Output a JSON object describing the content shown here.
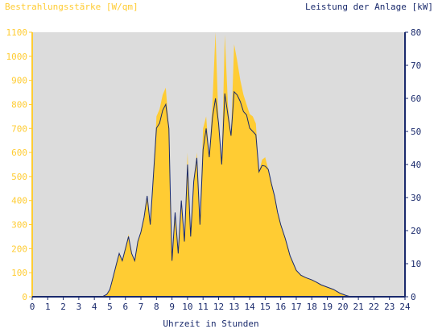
{
  "chart_data": {
    "type": "area",
    "left_axis_title": "Bestrahlungsstärke [W/qm]",
    "right_axis_title": "Leistung der Anlage [kW]",
    "xlabel": "Uhrzeit in Stunden",
    "xlim": [
      0,
      24
    ],
    "y_left_lim": [
      0,
      1100
    ],
    "y_right_lim": [
      0,
      80
    ],
    "x_ticks": [
      "0",
      "1",
      "2",
      "3",
      "4",
      "5",
      "6",
      "7",
      "8",
      "9",
      "10",
      "11",
      "12",
      "13",
      "14",
      "15",
      "16",
      "17",
      "18",
      "19",
      "20",
      "21",
      "22",
      "23",
      "24"
    ],
    "y_left_ticks": [
      "0",
      "100",
      "200",
      "300",
      "400",
      "500",
      "600",
      "700",
      "800",
      "900",
      "1000",
      "1100"
    ],
    "y_right_ticks": [
      "0",
      "10",
      "20",
      "30",
      "40",
      "50",
      "60",
      "70",
      "80"
    ],
    "grid": false,
    "colors": {
      "plot_bg": "#dcdcdc",
      "irradiance": "#ffcc33",
      "power": "#1a2a6c",
      "left_axis": "#ffcc33",
      "right_axis": "#1a2a6c"
    },
    "series": [
      {
        "axis": "left",
        "kind": "area",
        "x": [
          0,
          4.5,
          4.8,
          5.0,
          5.2,
          5.4,
          5.6,
          5.8,
          6.0,
          6.2,
          6.4,
          6.6,
          6.8,
          7.0,
          7.2,
          7.4,
          7.6,
          7.8,
          8.0,
          8.2,
          8.4,
          8.6,
          8.8,
          8.9,
          9.0,
          9.2,
          9.4,
          9.6,
          9.8,
          10.0,
          10.2,
          10.4,
          10.6,
          10.8,
          11.0,
          11.2,
          11.4,
          11.6,
          11.8,
          12.0,
          12.2,
          12.4,
          12.6,
          12.8,
          13.0,
          13.2,
          13.4,
          13.6,
          13.8,
          14.0,
          14.2,
          14.4,
          14.6,
          14.8,
          15.0,
          15.2,
          15.4,
          15.6,
          15.8,
          16.0,
          16.3,
          16.6,
          17.0,
          17.3,
          17.6,
          18.0,
          18.3,
          18.6,
          19.0,
          19.4,
          19.8,
          20.2,
          20.5,
          21.0,
          24
        ],
        "values": [
          0,
          0,
          10,
          30,
          80,
          130,
          180,
          150,
          200,
          260,
          180,
          150,
          230,
          270,
          330,
          420,
          300,
          500,
          750,
          780,
          840,
          870,
          700,
          400,
          150,
          350,
          180,
          400,
          230,
          600,
          250,
          480,
          600,
          300,
          700,
          750,
          580,
          800,
          1100,
          720,
          550,
          1090,
          800,
          670,
          1050,
          980,
          900,
          840,
          800,
          760,
          750,
          720,
          520,
          570,
          580,
          530,
          470,
          420,
          350,
          300,
          240,
          170,
          110,
          90,
          80,
          70,
          60,
          50,
          40,
          30,
          15,
          5,
          0,
          0,
          0
        ]
      },
      {
        "axis": "right",
        "kind": "line",
        "x": [
          0,
          4.5,
          4.8,
          5.0,
          5.2,
          5.4,
          5.6,
          5.8,
          6.0,
          6.2,
          6.4,
          6.6,
          6.8,
          7.0,
          7.2,
          7.4,
          7.6,
          7.8,
          8.0,
          8.2,
          8.4,
          8.6,
          8.8,
          8.9,
          9.0,
          9.2,
          9.4,
          9.6,
          9.8,
          10.0,
          10.2,
          10.4,
          10.6,
          10.8,
          11.0,
          11.2,
          11.4,
          11.6,
          11.8,
          12.0,
          12.2,
          12.4,
          12.6,
          12.8,
          13.0,
          13.2,
          13.4,
          13.6,
          13.8,
          14.0,
          14.2,
          14.4,
          14.6,
          14.8,
          15.0,
          15.2,
          15.4,
          15.6,
          15.8,
          16.0,
          16.3,
          16.6,
          17.0,
          17.3,
          17.6,
          18.0,
          18.3,
          18.6,
          19.0,
          19.4,
          19.8,
          20.2,
          20.5,
          21.0,
          24
        ],
        "values": [
          0,
          0,
          0.7,
          2.2,
          5.8,
          9.5,
          13.1,
          10.9,
          14.5,
          18.2,
          13.1,
          10.9,
          16.7,
          19.6,
          24.0,
          30.5,
          21.8,
          36.4,
          51.0,
          52.5,
          56.4,
          58.2,
          50.9,
          29.1,
          10.9,
          25.5,
          13.1,
          29.1,
          16.7,
          40.0,
          18.2,
          34.9,
          42.0,
          21.8,
          44.5,
          50.9,
          42.2,
          54.0,
          60.0,
          52.4,
          40.0,
          61.5,
          55.0,
          48.7,
          62.0,
          61.0,
          59.0,
          56.0,
          55.0,
          51.0,
          50.0,
          49.0,
          37.8,
          39.7,
          39.5,
          38.5,
          34.2,
          30.5,
          25.5,
          21.8,
          17.5,
          12.4,
          8.0,
          6.5,
          5.8,
          5.1,
          4.4,
          3.6,
          2.9,
          2.2,
          1.1,
          0.4,
          0,
          0,
          0
        ]
      }
    ]
  }
}
